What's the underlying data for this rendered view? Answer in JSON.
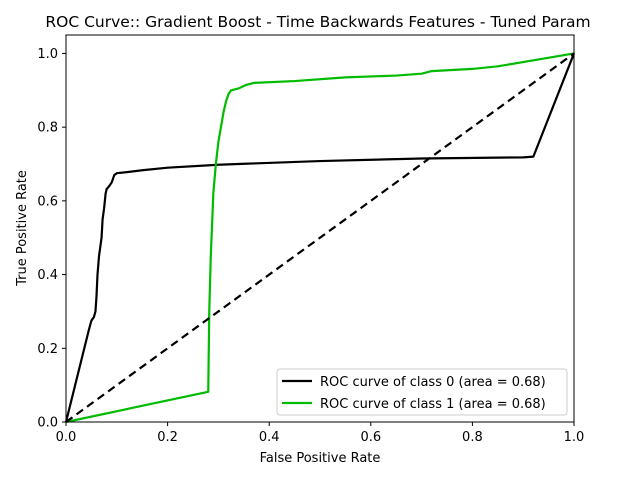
{
  "chart_data": {
    "type": "line",
    "title": "ROC Curve:: Gradient Boost - Time Backwards Features - Tuned Param",
    "xlabel": "False Positive Rate",
    "ylabel": "True Positive Rate",
    "xlim": [
      0.0,
      1.0
    ],
    "ylim": [
      0.0,
      1.05
    ],
    "xticks": [
      "0.0",
      "0.2",
      "0.4",
      "0.6",
      "0.8",
      "1.0"
    ],
    "yticks": [
      "0.0",
      "0.2",
      "0.4",
      "0.6",
      "0.8",
      "1.0"
    ],
    "grid": false,
    "legend_position": "lower-right",
    "series": [
      {
        "name": "ROC curve of class 0 (area = 0.68)",
        "color": "#000000",
        "dashed": false,
        "x": [
          0.0,
          0.045,
          0.05,
          0.055,
          0.058,
          0.06,
          0.062,
          0.065,
          0.07,
          0.072,
          0.075,
          0.078,
          0.08,
          0.082,
          0.085,
          0.09,
          0.095,
          0.1,
          0.12,
          0.15,
          0.2,
          0.3,
          0.5,
          0.7,
          0.9,
          0.92,
          1.0
        ],
        "y": [
          0.0,
          0.25,
          0.275,
          0.285,
          0.3,
          0.34,
          0.4,
          0.45,
          0.5,
          0.55,
          0.58,
          0.62,
          0.632,
          0.635,
          0.64,
          0.65,
          0.67,
          0.675,
          0.678,
          0.683,
          0.69,
          0.698,
          0.708,
          0.715,
          0.718,
          0.72,
          1.0
        ]
      },
      {
        "name": "ROC curve of class 1 (area = 0.68)",
        "color": "#00bb00",
        "dashed": false,
        "x": [
          0.0,
          0.28,
          0.282,
          0.285,
          0.288,
          0.29,
          0.295,
          0.3,
          0.305,
          0.31,
          0.315,
          0.32,
          0.325,
          0.34,
          0.355,
          0.37,
          0.45,
          0.55,
          0.65,
          0.7,
          0.72,
          0.8,
          0.85,
          1.0
        ],
        "y": [
          0.0,
          0.082,
          0.3,
          0.45,
          0.55,
          0.62,
          0.7,
          0.76,
          0.8,
          0.84,
          0.87,
          0.89,
          0.9,
          0.905,
          0.915,
          0.92,
          0.925,
          0.935,
          0.94,
          0.945,
          0.952,
          0.958,
          0.965,
          1.0
        ]
      },
      {
        "name": "",
        "color": "#000000",
        "dashed": true,
        "x": [
          0.0,
          1.0
        ],
        "y": [
          0.0,
          1.0
        ]
      }
    ]
  }
}
